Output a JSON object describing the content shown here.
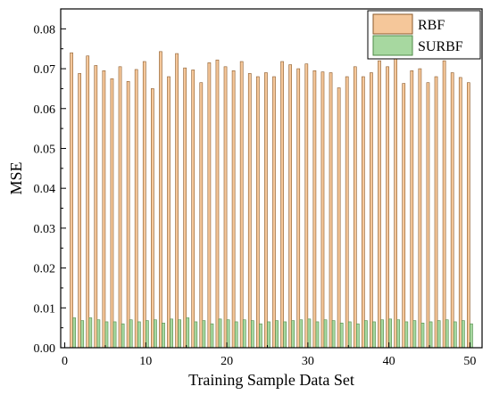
{
  "chart_data": {
    "type": "bar",
    "xlabel": "Training Sample Data Set",
    "ylabel": "MSE",
    "xlim": [
      -0.5,
      51.5
    ],
    "ylim": [
      0,
      0.085
    ],
    "xticks": [
      0,
      10,
      20,
      30,
      40,
      50
    ],
    "xtick_labels": [
      "0",
      "10",
      "20",
      "30",
      "40",
      "50"
    ],
    "yticks": [
      0.0,
      0.01,
      0.02,
      0.03,
      0.04,
      0.05,
      0.06,
      0.07,
      0.08
    ],
    "ytick_labels": [
      "0.00",
      "0.01",
      "0.02",
      "0.03",
      "0.04",
      "0.05",
      "0.06",
      "0.07",
      "0.08"
    ],
    "legend_position": "top-right",
    "grid": false,
    "x": [
      1,
      2,
      3,
      4,
      5,
      6,
      7,
      8,
      9,
      10,
      11,
      12,
      13,
      14,
      15,
      16,
      17,
      18,
      19,
      20,
      21,
      22,
      23,
      24,
      25,
      26,
      27,
      28,
      29,
      30,
      31,
      32,
      33,
      34,
      35,
      36,
      37,
      38,
      39,
      40,
      41,
      42,
      43,
      44,
      45,
      46,
      47,
      48,
      49,
      50
    ],
    "series": [
      {
        "name": "RBF",
        "color": "#f5c79a",
        "edge": "#8a5a2b",
        "values": [
          0.074,
          0.0688,
          0.0732,
          0.0708,
          0.0695,
          0.0675,
          0.0705,
          0.0668,
          0.0698,
          0.0718,
          0.065,
          0.0743,
          0.068,
          0.0738,
          0.0702,
          0.0697,
          0.0665,
          0.0715,
          0.0722,
          0.0705,
          0.0695,
          0.0718,
          0.0688,
          0.068,
          0.069,
          0.068,
          0.0718,
          0.071,
          0.07,
          0.0712,
          0.0695,
          0.0692,
          0.069,
          0.0652,
          0.068,
          0.0705,
          0.068,
          0.069,
          0.072,
          0.0705,
          0.0738,
          0.0663,
          0.0695,
          0.07,
          0.0665,
          0.068,
          0.072,
          0.069,
          0.0678,
          0.0665
        ]
      },
      {
        "name": "SURBF",
        "color": "#a7d8a0",
        "edge": "#4f8a47",
        "values": [
          0.0075,
          0.0068,
          0.0075,
          0.007,
          0.0065,
          0.0065,
          0.006,
          0.007,
          0.0065,
          0.0068,
          0.007,
          0.0062,
          0.0072,
          0.007,
          0.0075,
          0.0065,
          0.0068,
          0.006,
          0.0072,
          0.007,
          0.0065,
          0.007,
          0.0068,
          0.006,
          0.0065,
          0.0068,
          0.0065,
          0.0068,
          0.007,
          0.0072,
          0.0065,
          0.007,
          0.0068,
          0.0062,
          0.0065,
          0.006,
          0.0068,
          0.0065,
          0.007,
          0.0072,
          0.007,
          0.0065,
          0.0068,
          0.0062,
          0.0065,
          0.0068,
          0.007,
          0.0065,
          0.0068,
          0.006
        ]
      }
    ]
  }
}
